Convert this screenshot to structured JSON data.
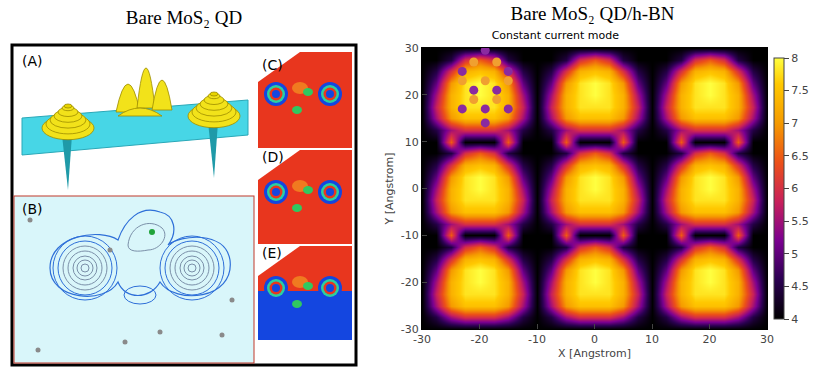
{
  "left_panel": {
    "heading": "Bare MoS₂ QD",
    "labels": [
      "(A)",
      "(B)",
      "(C)",
      "(D)",
      "(E)"
    ]
  },
  "right_panel": {
    "heading": "Bare MoS₂ QD/h-BN"
  },
  "chart_data": {
    "type": "heatmap",
    "title": "Constant current mode",
    "x_label": "X [Angstrom]",
    "y_label": "Y [Angstrom]",
    "x": [
      -30,
      -27.5,
      -25,
      -22.5,
      -20,
      -17.5,
      -15,
      -12.5,
      -10,
      -7.5,
      -5,
      -2.5,
      0,
      2.5,
      5,
      7.5,
      10,
      12.5,
      15,
      17.5,
      20,
      22.5,
      25,
      27.5,
      30
    ],
    "y": [
      -30,
      -27.5,
      -25,
      -22.5,
      -20,
      -17.5,
      -15,
      -12.5,
      -10,
      -7.5,
      -5,
      -2.5,
      0,
      2.5,
      5,
      7.5,
      10,
      12.5,
      15,
      17.5,
      20,
      22.5,
      25,
      27.5,
      30
    ],
    "z": [
      [
        4,
        4,
        4,
        4,
        4,
        4,
        4,
        4,
        4,
        4,
        4,
        4,
        4,
        4,
        4,
        4,
        4,
        4,
        4,
        4,
        4,
        4,
        4,
        4,
        4
      ],
      [
        4,
        4.5,
        5.5,
        6,
        6,
        6,
        5.5,
        4.5,
        4,
        4.5,
        5.5,
        6,
        6,
        6,
        5.5,
        4.5,
        4,
        4.5,
        5.5,
        6,
        6,
        6,
        5.5,
        4.5,
        4
      ],
      [
        4,
        5.5,
        7,
        7.5,
        7.5,
        7.5,
        7,
        5.5,
        4,
        5.5,
        7,
        7.5,
        7.5,
        7.5,
        7,
        5.5,
        4,
        5.5,
        7,
        7.5,
        7.5,
        7.5,
        7,
        5.5,
        4
      ],
      [
        4,
        5.8,
        7.3,
        7.8,
        7.8,
        7.8,
        7.3,
        5.8,
        4,
        5.8,
        7.3,
        7.8,
        7.8,
        7.8,
        7.3,
        5.8,
        4,
        5.8,
        7.3,
        7.8,
        7.8,
        7.8,
        7.3,
        5.8,
        4
      ],
      [
        4,
        5.5,
        7.3,
        7.8,
        8,
        7.8,
        7.3,
        5.5,
        4,
        5.5,
        7.3,
        7.8,
        8,
        7.8,
        7.3,
        5.5,
        4,
        5.5,
        7.3,
        7.8,
        8,
        7.8,
        7.3,
        5.5,
        4
      ],
      [
        4,
        5,
        7,
        7.8,
        8,
        7.8,
        7,
        5,
        4,
        5,
        7,
        7.8,
        8,
        7.8,
        7,
        5,
        4,
        5,
        7,
        7.8,
        8,
        7.8,
        7,
        5,
        4
      ],
      [
        4,
        4.5,
        6,
        7.3,
        7.5,
        7.3,
        6,
        4.5,
        4,
        4.5,
        6,
        7.3,
        7.5,
        7.3,
        6,
        4.5,
        4,
        4.5,
        6,
        7.3,
        7.5,
        7.3,
        6,
        4.5,
        4
      ],
      [
        4,
        4,
        4.5,
        6,
        6.5,
        6,
        4.5,
        4,
        4,
        4,
        4.5,
        6,
        6.5,
        6,
        4.5,
        4,
        4,
        4,
        4.5,
        6,
        6.5,
        6,
        4.5,
        4,
        4
      ],
      [
        4,
        4,
        6.5,
        4,
        4,
        4,
        6.5,
        4,
        4,
        4,
        6.5,
        4,
        4,
        4,
        6.5,
        4,
        4,
        4,
        6.5,
        4,
        4,
        4,
        6.5,
        4,
        4
      ],
      [
        4,
        4.5,
        5.5,
        6,
        6,
        6,
        5.5,
        4.5,
        4,
        4.5,
        5.5,
        6,
        6,
        6,
        5.5,
        4.5,
        4,
        4.5,
        5.5,
        6,
        6,
        6,
        5.5,
        4.5,
        4
      ],
      [
        4,
        5.5,
        7,
        7.5,
        7.5,
        7.5,
        7,
        5.5,
        4,
        5.5,
        7,
        7.5,
        7.5,
        7.5,
        7,
        5.5,
        4,
        5.5,
        7,
        7.5,
        7.5,
        7.5,
        7,
        5.5,
        4
      ],
      [
        4,
        5.8,
        7.3,
        7.8,
        7.8,
        7.8,
        7.3,
        5.8,
        4,
        5.8,
        7.3,
        7.8,
        7.8,
        7.8,
        7.3,
        5.8,
        4,
        5.8,
        7.3,
        7.8,
        7.8,
        7.8,
        7.3,
        5.8,
        4
      ],
      [
        4,
        5.5,
        7.3,
        7.8,
        8,
        7.8,
        7.3,
        5.5,
        4,
        5.5,
        7.3,
        7.8,
        8,
        7.8,
        7.3,
        5.5,
        4,
        5.5,
        7.3,
        7.8,
        8,
        7.8,
        7.3,
        5.5,
        4
      ],
      [
        4,
        5,
        7,
        7.8,
        8,
        7.8,
        7,
        5,
        4,
        5,
        7,
        7.8,
        8,
        7.8,
        7,
        5,
        4,
        5,
        7,
        7.8,
        8,
        7.8,
        7,
        5,
        4
      ],
      [
        4,
        4.5,
        6,
        7.3,
        7.5,
        7.3,
        6,
        4.5,
        4,
        4.5,
        6,
        7.3,
        7.5,
        7.3,
        6,
        4.5,
        4,
        4.5,
        6,
        7.3,
        7.5,
        7.3,
        6,
        4.5,
        4
      ],
      [
        4,
        4,
        4.5,
        6,
        6.5,
        6,
        4.5,
        4,
        4,
        4,
        4.5,
        6,
        6.5,
        6,
        4.5,
        4,
        4,
        4,
        4.5,
        6,
        6.5,
        6,
        4.5,
        4,
        4
      ],
      [
        4,
        4,
        6.5,
        4,
        4,
        4,
        6.5,
        4,
        4,
        4,
        6.5,
        4,
        4,
        4,
        6.5,
        4,
        4,
        4,
        6.5,
        4,
        4,
        4,
        6.5,
        4,
        4
      ],
      [
        4,
        4.5,
        5.5,
        6,
        6,
        6,
        5.5,
        4.5,
        4,
        4.5,
        5.5,
        6,
        6,
        6,
        5.5,
        4.5,
        4,
        4.5,
        5.5,
        6,
        6,
        6,
        5.5,
        4.5,
        4
      ],
      [
        4,
        5.5,
        7,
        7.5,
        7.5,
        7.5,
        7,
        5.5,
        4,
        5.5,
        7,
        7.5,
        7.5,
        7.5,
        7,
        5.5,
        4,
        5.5,
        7,
        7.5,
        7.5,
        7.5,
        7,
        5.5,
        4
      ],
      [
        4,
        5.8,
        7.3,
        7.8,
        7.8,
        7.8,
        7.3,
        5.8,
        4,
        5.8,
        7.3,
        7.8,
        7.8,
        7.8,
        7.3,
        5.8,
        4,
        5.8,
        7.3,
        7.8,
        7.8,
        7.8,
        7.3,
        5.8,
        4
      ],
      [
        4,
        5.5,
        7.3,
        7.8,
        8,
        7.8,
        7.3,
        5.5,
        4,
        5.5,
        7.3,
        7.8,
        8,
        7.8,
        7.3,
        5.5,
        4,
        5.5,
        7.3,
        7.8,
        8,
        7.8,
        7.3,
        5.5,
        4
      ],
      [
        4,
        5,
        7,
        7.8,
        8,
        7.8,
        7,
        5,
        4,
        5,
        7,
        7.8,
        8,
        7.8,
        7,
        5,
        4,
        5,
        7,
        7.8,
        8,
        7.8,
        7,
        5,
        4
      ],
      [
        4,
        4.5,
        6,
        7.3,
        7.5,
        7.3,
        6,
        4.5,
        4,
        4.5,
        6,
        7.3,
        7.5,
        7.3,
        6,
        4.5,
        4,
        4.5,
        6,
        7.3,
        7.5,
        7.3,
        6,
        4.5,
        4
      ],
      [
        4,
        4,
        4.5,
        6,
        6.5,
        6,
        4.5,
        4,
        4,
        4,
        4.5,
        6,
        6.5,
        6,
        4.5,
        4,
        4,
        4,
        4.5,
        6,
        6.5,
        6,
        4.5,
        4,
        4
      ],
      [
        4,
        4,
        4,
        4,
        4,
        4,
        4,
        4,
        4,
        4,
        4,
        4,
        4,
        4,
        4,
        4,
        4,
        4,
        4,
        4,
        4,
        4,
        4,
        4,
        4
      ]
    ],
    "xlim": [
      -30,
      30
    ],
    "ylim": [
      -30,
      30
    ],
    "xticks": [
      -30,
      -20,
      -10,
      0,
      10,
      20,
      30
    ],
    "yticks": [
      -30,
      -20,
      -10,
      0,
      10,
      20,
      30
    ],
    "grid": false,
    "colorbar": {
      "range": [
        4,
        8
      ],
      "ticks": [
        4,
        4.5,
        5,
        5.5,
        6,
        6.5,
        7,
        7.5,
        8
      ]
    },
    "series": [
      {
        "type": "scatter",
        "marker": "circle",
        "color": "#f0a030",
        "x": [
          -21,
          -17,
          -23,
          -19,
          -15,
          -21,
          -17
        ],
        "y": [
          27,
          27,
          23,
          23,
          23,
          19,
          19
        ]
      },
      {
        "type": "scatter",
        "marker": "circle",
        "color": "#8a2aa0",
        "x": [
          -19,
          -23,
          -15,
          -21,
          -17,
          -23,
          -19,
          -15,
          -19
        ],
        "y": [
          29.5,
          25,
          25,
          21,
          21,
          17,
          17,
          17,
          14
        ]
      }
    ]
  }
}
